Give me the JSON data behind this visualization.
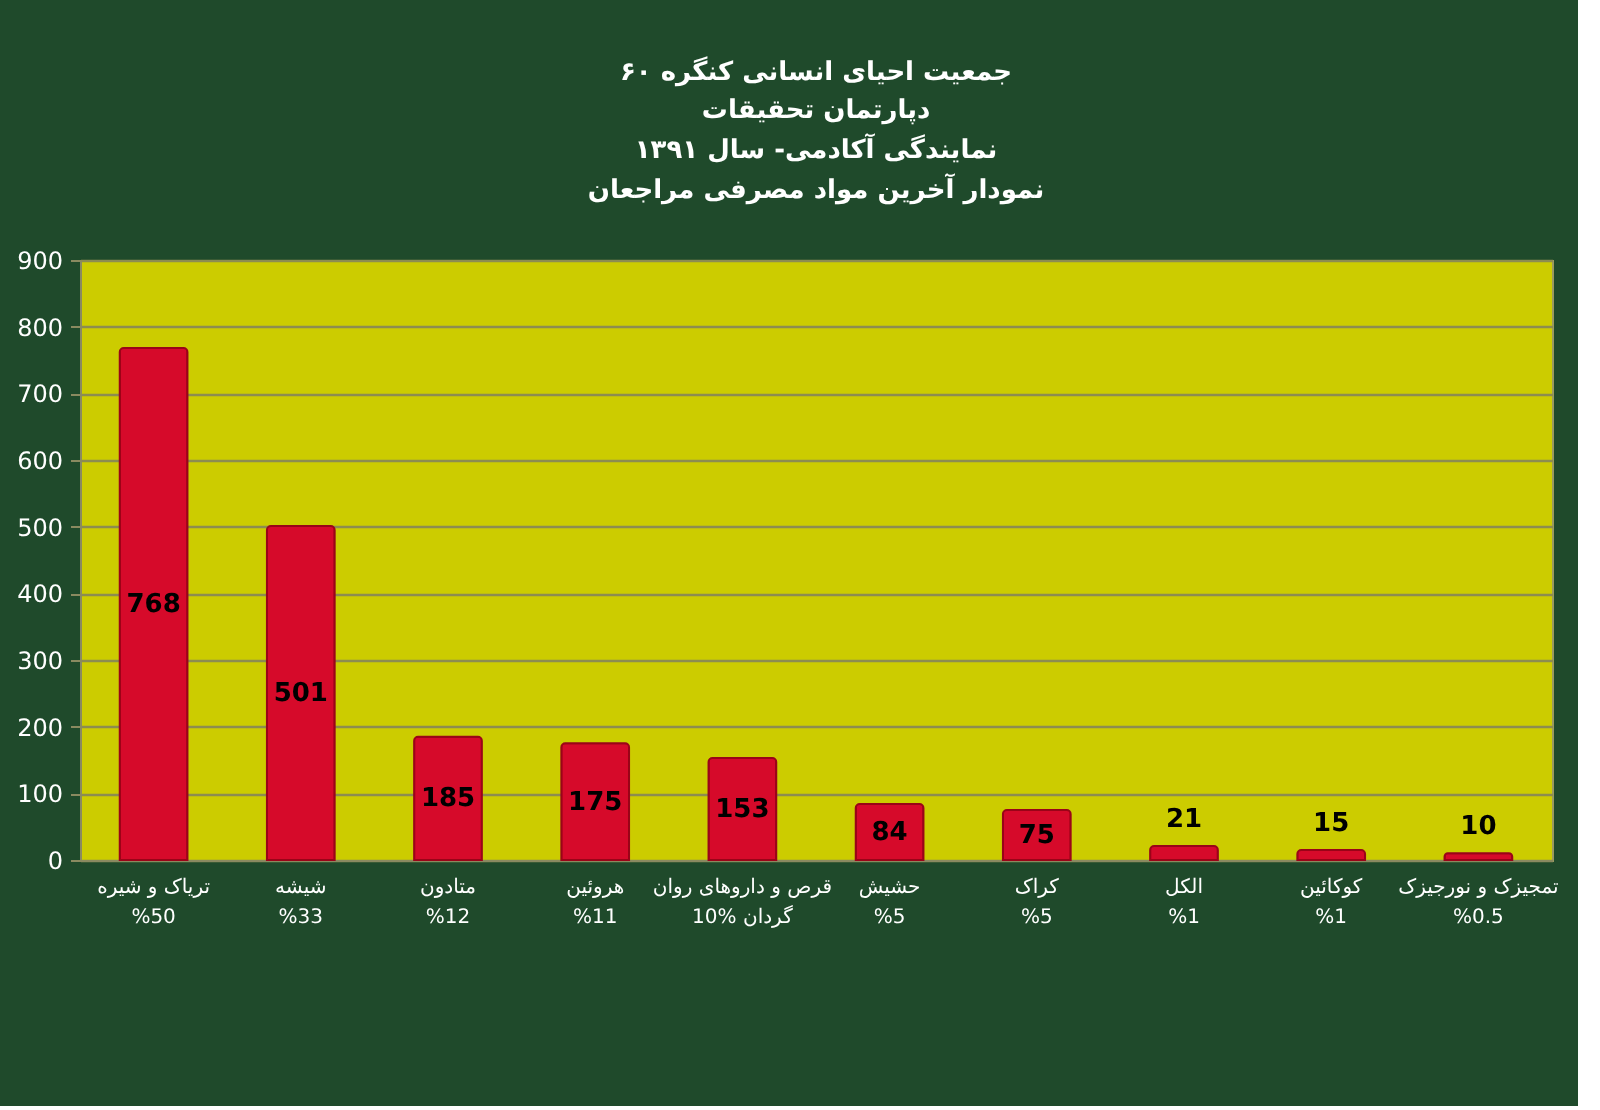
{
  "chart_data": {
    "type": "bar",
    "title": "جمعیت احیای انسانی کنگره ۶۰",
    "subtitle": "دپارتمان تحقیقات\nنمایندگی آکادمی- سال ۱۳۹۱\nنمودار آخرین مواد مصرفی مراجعان",
    "categories": [
      "تریاک و شیره\n%50",
      "شیشه\n%33",
      "متادون\n%12",
      "هروئین\n%11",
      "قرص و داروهای روان\nگردان %10",
      "حشیش\n%5",
      "کراک\n%5",
      "الکل\n%1",
      "کوکائین\n%1",
      "تمجیزک و نورجیزک\n%0.5"
    ],
    "values": [
      768,
      501,
      185,
      175,
      153,
      84,
      75,
      21,
      15,
      10
    ],
    "color": "#d60a2a",
    "ylim": [
      0,
      900
    ],
    "yticks": [
      0,
      100,
      200,
      300,
      400,
      500,
      600,
      700,
      800,
      900
    ],
    "grid": "y",
    "data_labels": true
  }
}
